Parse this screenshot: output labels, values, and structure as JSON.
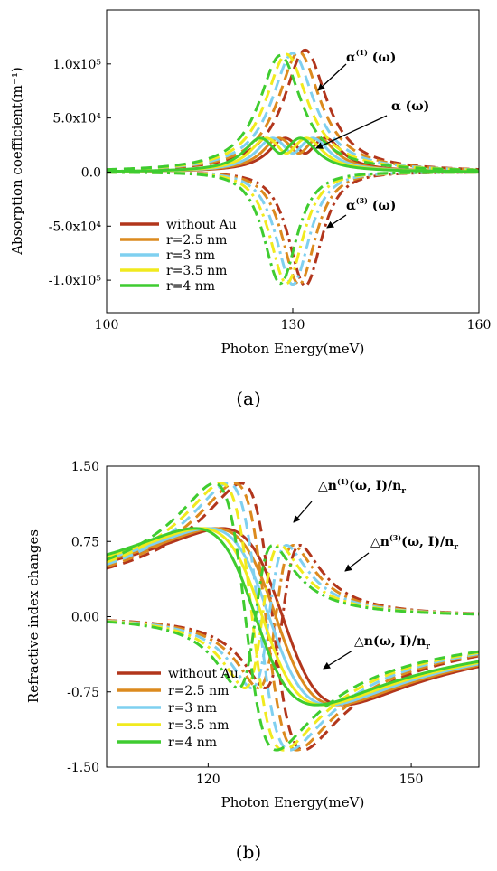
{
  "chart_data": [
    {
      "type": "line",
      "panel_label": "(a)",
      "xlabel": "Photon Energy(meV)",
      "ylabel": "Absorption coefficient(m⁻¹)",
      "xlim": [
        100,
        160
      ],
      "ylim": [
        -130000.0,
        150000.0
      ],
      "xticks": [
        100,
        130,
        160
      ],
      "xtick_labels": [
        "100",
        "130",
        "160"
      ],
      "yticks": [
        100000,
        50000,
        0,
        -50000,
        -100000
      ],
      "ytick_labels": [
        "1.0x10⁵",
        "5.0x10⁴",
        "0.0",
        "-5.0x10⁴",
        "-1.0x10⁵"
      ],
      "legend_position": "lower-left",
      "series": [
        {
          "name": "without Au",
          "color": "#b2361c",
          "peak_x": 132,
          "linear_peak": 28000,
          "peak_1": 113000,
          "peak_3": -105000
        },
        {
          "name": "r=2.5 nm",
          "color": "#dc8a1e",
          "peak_x": 131,
          "linear_peak": 28000,
          "peak_1": 111000,
          "peak_3": -104000
        },
        {
          "name": "r=3 nm",
          "color": "#7fd0f0",
          "peak_x": 130,
          "linear_peak": 28000,
          "peak_1": 110000,
          "peak_3": -104000
        },
        {
          "name": "r=3.5 nm",
          "color": "#f1ea1e",
          "peak_x": 129,
          "linear_peak": 28000,
          "peak_1": 109000,
          "peak_3": -103000
        },
        {
          "name": "r=4 nm",
          "color": "#3fcc30",
          "peak_x": 128,
          "linear_peak": 28000,
          "peak_1": 108000,
          "peak_3": -103000
        }
      ],
      "annotations": [
        {
          "base": "α",
          "sup": "(1)",
          "args": "(ω)",
          "target": "peak_1"
        },
        {
          "base": "α",
          "sup": "",
          "args": "(ω)",
          "target": "linear"
        },
        {
          "base": "α",
          "sup": "(3)",
          "args": "(ω)",
          "target": "peak_3"
        }
      ]
    },
    {
      "type": "line",
      "panel_label": "(b)",
      "xlabel": "Photon Energy(meV)",
      "ylabel": "Refractive index changes",
      "xlim": [
        105,
        160
      ],
      "ylim": [
        -1.5,
        1.5
      ],
      "xticks": [
        120,
        150
      ],
      "xtick_labels": [
        "120",
        "150"
      ],
      "yticks": [
        1.5,
        0.75,
        0.0,
        -0.75,
        -1.5
      ],
      "ytick_labels": [
        "1.50",
        "0.75",
        "0.00",
        "-0.75",
        "-1.50"
      ],
      "legend_position": "lower-left",
      "series": [
        {
          "name": "without Au",
          "color": "#b2361c",
          "center_x": 131,
          "linear_amp": 0.88,
          "third_amp": 0.82,
          "total_amp": 1.33
        },
        {
          "name": "r=2.5 nm",
          "color": "#dc8a1e",
          "center_x": 130,
          "linear_amp": 0.88,
          "third_amp": 0.82,
          "total_amp": 1.33
        },
        {
          "name": "r=3 nm",
          "color": "#7fd0f0",
          "center_x": 129,
          "linear_amp": 0.88,
          "third_amp": 0.82,
          "total_amp": 1.33
        },
        {
          "name": "r=3.5 nm",
          "color": "#f1ea1e",
          "center_x": 128,
          "linear_amp": 0.88,
          "third_amp": 0.82,
          "total_amp": 1.33
        },
        {
          "name": "r=4 nm",
          "color": "#3fcc30",
          "center_x": 127,
          "linear_amp": 0.88,
          "third_amp": 0.82,
          "total_amp": 1.33
        }
      ],
      "annotations": [
        {
          "base": "△n",
          "sup": "(1)",
          "args": "(ω, I)/n",
          "sub": "r",
          "target": "total"
        },
        {
          "base": "△n",
          "sup": "(3)",
          "args": "(ω, I)/n",
          "sub": "r",
          "target": "third"
        },
        {
          "base": "△n",
          "sup": "",
          "args": "(ω, I)/n",
          "sub": "r",
          "target": "linear"
        }
      ]
    }
  ]
}
